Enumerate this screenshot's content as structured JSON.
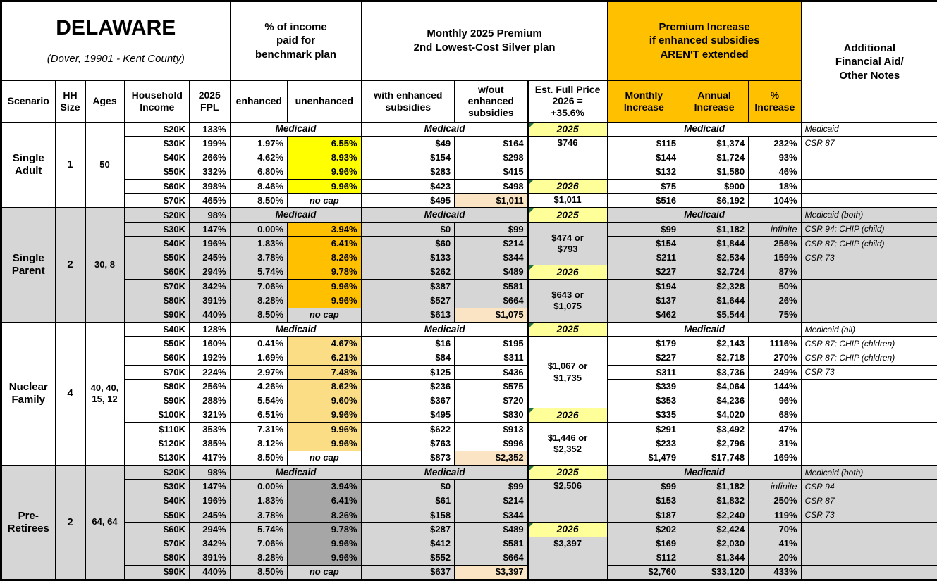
{
  "colors": {
    "header_orange": "#FFC000",
    "single_adult_highlight": "#FFFF00",
    "single_parent_highlight": "#FFC000",
    "nuclear_family_highlight": "#FADD85",
    "pre_retirees_highlight": "#A6A6A6",
    "section_gray": "#D6D6D6",
    "year_cell_yellow": "#FFFF99",
    "full_price_peach": "#FBE4C3",
    "comment_triangle_green": "#217346"
  },
  "header": {
    "state": "DELAWARE",
    "location": "(Dover, 19901 - Kent County)",
    "pct_income": "% of income\npaid for\nbenchmark plan",
    "monthly_premium": "Monthly 2025 Premium\n2nd Lowest-Cost Silver plan",
    "premium_increase": "Premium Increase\nif enhanced subsidies\nAREN'T extended",
    "additional_notes": "Additional\nFinancial Aid/\nOther Notes",
    "cols": {
      "scenario": "Scenario",
      "hh_size": "HH\nSize",
      "ages": "Ages",
      "income": "Household\nIncome",
      "fpl": "2025\nFPL",
      "enhanced": "enhanced",
      "unenhanced": "unenhanced",
      "with_sub": "with enhanced\nsubsidies",
      "wout_sub": "w/out\nenhanced\nsubsidies",
      "est_full": "Est. Full Price\n2026 =\n+35.6%",
      "monthly": "Monthly\nIncrease",
      "annual": "Annual\nIncrease",
      "pct": "%\nIncrease"
    }
  },
  "scenarios": [
    {
      "name": "Single\nAdult",
      "hh_size": "1",
      "ages": "50",
      "section": "white",
      "highlight": "single_adult_highlight",
      "rows": [
        {
          "income": "$20K",
          "fpl": "133%",
          "medicaid": "Medicaid",
          "note": "Medicaid"
        },
        {
          "income": "$30K",
          "fpl": "199%",
          "enh": "1.97%",
          "unenh": "6.55%",
          "with_sub": "$49",
          "wout_sub": "$164",
          "monthly": "$115",
          "annual": "$1,374",
          "pct": "232%",
          "note": "CSR 87"
        },
        {
          "income": "$40K",
          "fpl": "266%",
          "enh": "4.62%",
          "unenh": "8.93%",
          "with_sub": "$154",
          "wout_sub": "$298",
          "monthly": "$144",
          "annual": "$1,724",
          "pct": "93%",
          "note": ""
        },
        {
          "income": "$50K",
          "fpl": "332%",
          "enh": "6.80%",
          "unenh": "9.96%",
          "with_sub": "$283",
          "wout_sub": "$415",
          "monthly": "$132",
          "annual": "$1,580",
          "pct": "46%",
          "note": ""
        },
        {
          "income": "$60K",
          "fpl": "398%",
          "enh": "8.46%",
          "unenh": "9.96%",
          "with_sub": "$423",
          "wout_sub": "$498",
          "monthly": "$75",
          "annual": "$900",
          "pct": "18%",
          "note": ""
        },
        {
          "income": "$70K",
          "fpl": "465%",
          "enh": "8.50%",
          "unenh": "no cap",
          "nocap": true,
          "with_sub": "$495",
          "wout_sub": "$1,011",
          "wout_hl": true,
          "monthly": "$516",
          "annual": "$6,192",
          "pct": "104%",
          "note": ""
        }
      ],
      "est_cells": [
        {
          "text": "2025",
          "year": true,
          "span": 1
        },
        {
          "text": "$746",
          "span": 3,
          "top": true
        },
        {
          "text": "2026",
          "year": true,
          "span": 1
        },
        {
          "text": "$1,011",
          "span": 1,
          "top": true
        }
      ]
    },
    {
      "name": "Single\nParent",
      "hh_size": "2",
      "ages": "30, 8",
      "section": "gray",
      "highlight": "single_parent_highlight",
      "rows": [
        {
          "income": "$20K",
          "fpl": "98%",
          "medicaid": "Medicaid",
          "note": "Medicaid (both)"
        },
        {
          "income": "$30K",
          "fpl": "147%",
          "enh": "0.00%",
          "unenh": "3.94%",
          "with_sub": "$0",
          "wout_sub": "$99",
          "monthly": "$99",
          "annual": "$1,182",
          "pct": "infinite",
          "note": "CSR 94; CHIP (child)"
        },
        {
          "income": "$40K",
          "fpl": "196%",
          "enh": "1.83%",
          "unenh": "6.41%",
          "with_sub": "$60",
          "wout_sub": "$214",
          "monthly": "$154",
          "annual": "$1,844",
          "pct": "256%",
          "note": "CSR 87; CHIP (child)"
        },
        {
          "income": "$50K",
          "fpl": "245%",
          "enh": "3.78%",
          "unenh": "8.26%",
          "with_sub": "$133",
          "wout_sub": "$344",
          "monthly": "$211",
          "annual": "$2,534",
          "pct": "159%",
          "note": "CSR 73"
        },
        {
          "income": "$60K",
          "fpl": "294%",
          "enh": "5.74%",
          "unenh": "9.78%",
          "with_sub": "$262",
          "wout_sub": "$489",
          "monthly": "$227",
          "annual": "$2,724",
          "pct": "87%",
          "note": ""
        },
        {
          "income": "$70K",
          "fpl": "342%",
          "enh": "7.06%",
          "unenh": "9.96%",
          "with_sub": "$387",
          "wout_sub": "$581",
          "monthly": "$194",
          "annual": "$2,328",
          "pct": "50%",
          "note": ""
        },
        {
          "income": "$80K",
          "fpl": "391%",
          "enh": "8.28%",
          "unenh": "9.96%",
          "with_sub": "$527",
          "wout_sub": "$664",
          "monthly": "$137",
          "annual": "$1,644",
          "pct": "26%",
          "note": ""
        },
        {
          "income": "$90K",
          "fpl": "440%",
          "enh": "8.50%",
          "unenh": "no cap",
          "nocap": true,
          "with_sub": "$613",
          "wout_sub": "$1,075",
          "wout_hl": true,
          "monthly": "$462",
          "annual": "$5,544",
          "pct": "75%",
          "note": ""
        }
      ],
      "est_cells": [
        {
          "text": "2025",
          "year": true,
          "span": 1
        },
        {
          "text": "$474 or\n$793",
          "span": 3
        },
        {
          "text": "2026",
          "year": true,
          "span": 1
        },
        {
          "text": "$643 or\n$1,075",
          "span": 3
        }
      ]
    },
    {
      "name": "Nuclear\nFamily",
      "hh_size": "4",
      "ages": "40, 40,\n15, 12",
      "section": "white",
      "highlight": "nuclear_family_highlight",
      "rows": [
        {
          "income": "$40K",
          "fpl": "128%",
          "medicaid": "Medicaid",
          "note": "Medicaid (all)"
        },
        {
          "income": "$50K",
          "fpl": "160%",
          "enh": "0.41%",
          "unenh": "4.67%",
          "with_sub": "$16",
          "wout_sub": "$195",
          "monthly": "$179",
          "annual": "$2,143",
          "pct": "1116%",
          "note": "CSR 87; CHIP (chldren)"
        },
        {
          "income": "$60K",
          "fpl": "192%",
          "enh": "1.69%",
          "unenh": "6.21%",
          "with_sub": "$84",
          "wout_sub": "$311",
          "monthly": "$227",
          "annual": "$2,718",
          "pct": "270%",
          "note": "CSR 87; CHIP (chldren)"
        },
        {
          "income": "$70K",
          "fpl": "224%",
          "enh": "2.97%",
          "unenh": "7.48%",
          "with_sub": "$125",
          "wout_sub": "$436",
          "monthly": "$311",
          "annual": "$3,736",
          "pct": "249%",
          "note": "CSR 73"
        },
        {
          "income": "$80K",
          "fpl": "256%",
          "enh": "4.26%",
          "unenh": "8.62%",
          "with_sub": "$236",
          "wout_sub": "$575",
          "monthly": "$339",
          "annual": "$4,064",
          "pct": "144%",
          "note": ""
        },
        {
          "income": "$90K",
          "fpl": "288%",
          "enh": "5.54%",
          "unenh": "9.60%",
          "with_sub": "$367",
          "wout_sub": "$720",
          "monthly": "$353",
          "annual": "$4,236",
          "pct": "96%",
          "note": ""
        },
        {
          "income": "$100K",
          "fpl": "321%",
          "enh": "6.51%",
          "unenh": "9.96%",
          "with_sub": "$495",
          "wout_sub": "$830",
          "monthly": "$335",
          "annual": "$4,020",
          "pct": "68%",
          "note": ""
        },
        {
          "income": "$110K",
          "fpl": "353%",
          "enh": "7.31%",
          "unenh": "9.96%",
          "with_sub": "$622",
          "wout_sub": "$913",
          "monthly": "$291",
          "annual": "$3,492",
          "pct": "47%",
          "note": ""
        },
        {
          "income": "$120K",
          "fpl": "385%",
          "enh": "8.12%",
          "unenh": "9.96%",
          "with_sub": "$763",
          "wout_sub": "$996",
          "monthly": "$233",
          "annual": "$2,796",
          "pct": "31%",
          "note": ""
        },
        {
          "income": "$130K",
          "fpl": "417%",
          "enh": "8.50%",
          "unenh": "no cap",
          "nocap": true,
          "with_sub": "$873",
          "wout_sub": "$2,352",
          "wout_hl": true,
          "monthly": "$1,479",
          "annual": "$17,748",
          "pct": "169%",
          "note": ""
        }
      ],
      "est_cells": [
        {
          "text": "2025",
          "year": true,
          "span": 1
        },
        {
          "text": "$1,067 or\n$1,735",
          "span": 5
        },
        {
          "text": "2026",
          "year": true,
          "span": 1
        },
        {
          "text": "$1,446 or\n$2,352",
          "span": 3
        }
      ]
    },
    {
      "name": "Pre-\nRetirees",
      "hh_size": "2",
      "ages": "64, 64",
      "section": "gray",
      "highlight": "pre_retirees_highlight",
      "rows": [
        {
          "income": "$20K",
          "fpl": "98%",
          "medicaid": "Medicaid",
          "note": "Medicaid (both)"
        },
        {
          "income": "$30K",
          "fpl": "147%",
          "enh": "0.00%",
          "unenh": "3.94%",
          "with_sub": "$0",
          "wout_sub": "$99",
          "monthly": "$99",
          "annual": "$1,182",
          "pct": "infinite",
          "note": "CSR 94"
        },
        {
          "income": "$40K",
          "fpl": "196%",
          "enh": "1.83%",
          "unenh": "6.41%",
          "with_sub": "$61",
          "wout_sub": "$214",
          "monthly": "$153",
          "annual": "$1,832",
          "pct": "250%",
          "note": "CSR 87"
        },
        {
          "income": "$50K",
          "fpl": "245%",
          "enh": "3.78%",
          "unenh": "8.26%",
          "with_sub": "$158",
          "wout_sub": "$344",
          "monthly": "$187",
          "annual": "$2,240",
          "pct": "119%",
          "note": "CSR 73"
        },
        {
          "income": "$60K",
          "fpl": "294%",
          "enh": "5.74%",
          "unenh": "9.78%",
          "with_sub": "$287",
          "wout_sub": "$489",
          "monthly": "$202",
          "annual": "$2,424",
          "pct": "70%",
          "note": ""
        },
        {
          "income": "$70K",
          "fpl": "342%",
          "enh": "7.06%",
          "unenh": "9.96%",
          "with_sub": "$412",
          "wout_sub": "$581",
          "monthly": "$169",
          "annual": "$2,030",
          "pct": "41%",
          "note": ""
        },
        {
          "income": "$80K",
          "fpl": "391%",
          "enh": "8.28%",
          "unenh": "9.96%",
          "with_sub": "$552",
          "wout_sub": "$664",
          "monthly": "$112",
          "annual": "$1,344",
          "pct": "20%",
          "note": ""
        },
        {
          "income": "$90K",
          "fpl": "440%",
          "enh": "8.50%",
          "unenh": "no cap",
          "nocap": true,
          "with_sub": "$637",
          "wout_sub": "$3,397",
          "wout_hl": true,
          "monthly": "$2,760",
          "annual": "$33,120",
          "pct": "433%",
          "note": ""
        }
      ],
      "est_cells": [
        {
          "text": "2025",
          "year": true,
          "span": 1
        },
        {
          "text": "$2,506",
          "span": 3,
          "top": true
        },
        {
          "text": "2026",
          "year": true,
          "span": 1
        },
        {
          "text": "$3,397",
          "span": 3,
          "top": true
        }
      ]
    }
  ]
}
